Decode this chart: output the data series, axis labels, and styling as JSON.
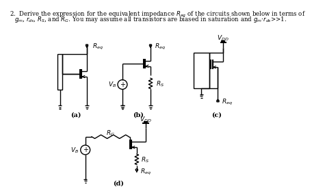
{
  "title_line1": "2.  Derive the expression for the equivalent impedance $R_{eq}$ of the circuits shown below in terms of",
  "title_line2": "$g_m$, $r_{ds}$, $R_S$, and $R_G$. You may assume all transistors are biased in saturation and $g_m$$\\cdot$$r_{ds}$>>1.",
  "bg_color": "#ffffff",
  "text_color": "#000000",
  "label_a": "(a)",
  "label_b": "(b)",
  "label_c": "(c)",
  "label_d": "(d)"
}
